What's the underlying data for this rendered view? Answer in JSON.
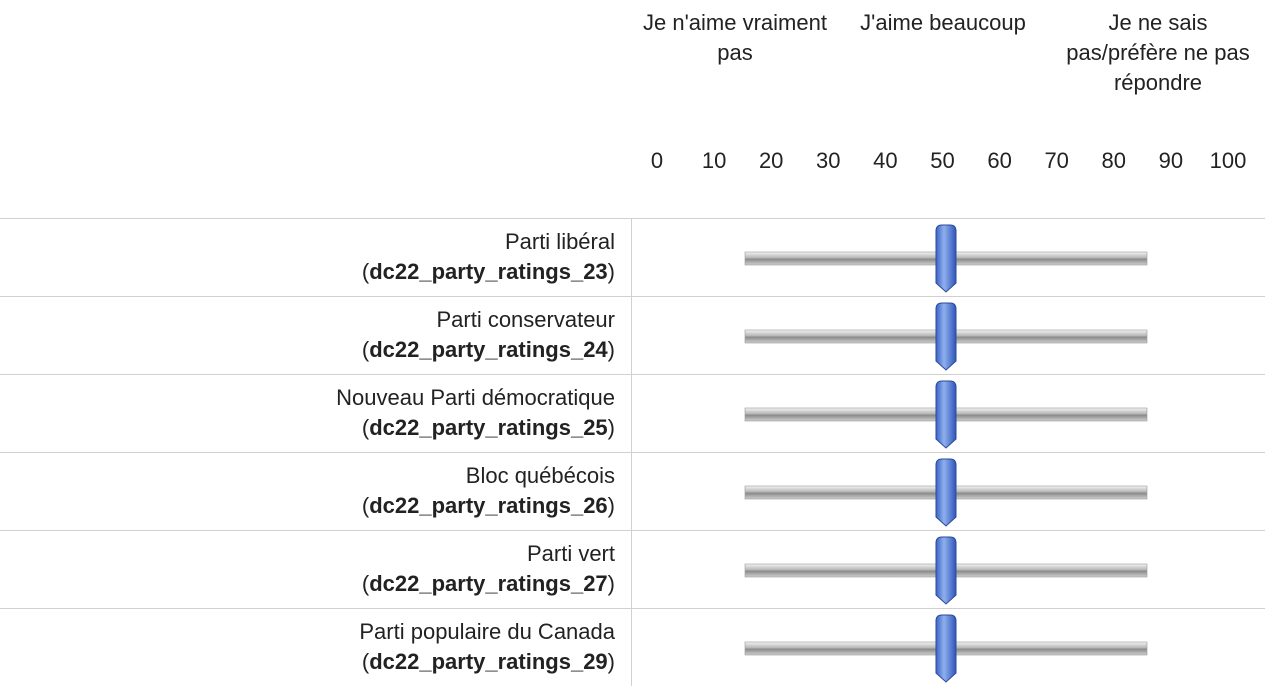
{
  "header": {
    "columns": [
      "Je n'aime vraiment pas",
      "J'aime beaucoup",
      "Je ne sais pas/préfère ne pas répondre"
    ]
  },
  "scale": {
    "ticks": [
      0,
      10,
      20,
      30,
      40,
      50,
      60,
      70,
      80,
      90,
      100
    ]
  },
  "code_brackets": [
    "(",
    ")"
  ],
  "rows": [
    {
      "label": "Parti libéral",
      "code": "dc22_party_ratings_23",
      "value": 50
    },
    {
      "label": "Parti conservateur",
      "code": "dc22_party_ratings_24",
      "value": 50
    },
    {
      "label": "Nouveau Parti démocratique",
      "code": "dc22_party_ratings_25",
      "value": 50
    },
    {
      "label": "Bloc québécois",
      "code": "dc22_party_ratings_26",
      "value": 50
    },
    {
      "label": "Parti vert",
      "code": "dc22_party_ratings_27",
      "value": 50
    },
    {
      "label": "Parti populaire du Canada",
      "code": "dc22_party_ratings_29",
      "value": 50
    }
  ]
}
